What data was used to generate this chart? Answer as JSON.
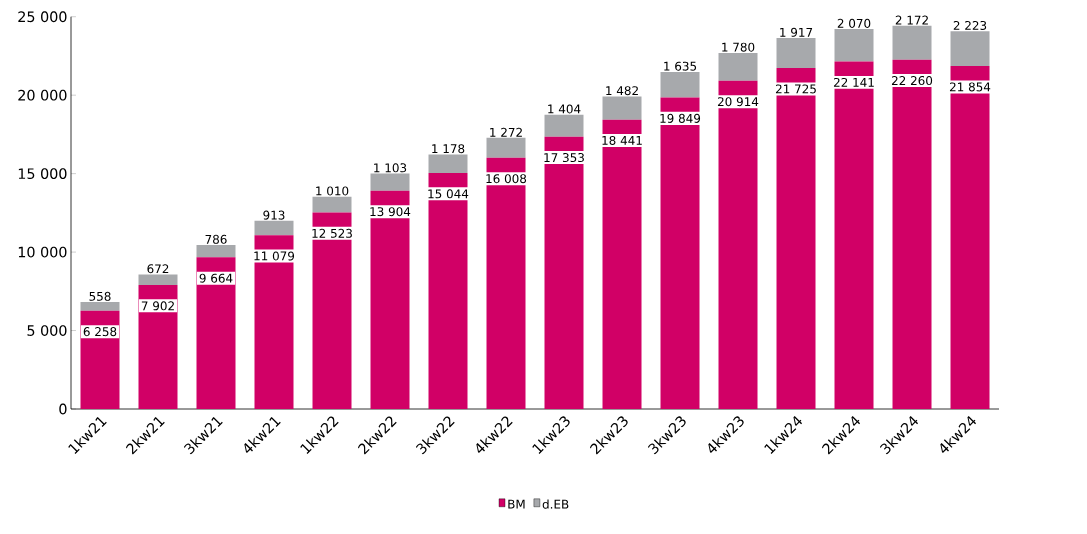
{
  "chart_data": {
    "type": "bar",
    "stacked": true,
    "categories": [
      "1kw21",
      "2kw21",
      "3kw21",
      "4kw21",
      "1kw22",
      "2kw22",
      "3kw22",
      "4kw22",
      "1kw23",
      "2kw23",
      "3kw23",
      "4kw23",
      "1kw24",
      "2kw24",
      "3kw24",
      "4kw24"
    ],
    "series": [
      {
        "name": "BM",
        "color": "#d10066",
        "values": [
          6258,
          7902,
          9664,
          11079,
          12523,
          13904,
          15044,
          16008,
          17353,
          18441,
          19849,
          20914,
          21725,
          22141,
          22260,
          21854
        ],
        "value_labels": [
          "6 258",
          "7 902",
          "9 664",
          "11 079",
          "12 523",
          "13 904",
          "15 044",
          "16 008",
          "17 353",
          "18 441",
          "19 849",
          "20 914",
          "21 725",
          "22 141",
          "22 260",
          "21 854"
        ]
      },
      {
        "name": "d.EB",
        "color": "#a7a9ac",
        "values": [
          558,
          672,
          786,
          913,
          1010,
          1103,
          1178,
          1272,
          1404,
          1482,
          1635,
          1780,
          1917,
          2070,
          2172,
          2223
        ],
        "value_labels": [
          "558",
          "672",
          "786",
          "913",
          "1 010",
          "1 103",
          "1 178",
          "1 272",
          "1 404",
          "1 482",
          "1 635",
          "1 780",
          "1 917",
          "2 070",
          "2 172",
          "2 223"
        ]
      }
    ],
    "ylim": [
      0,
      25000
    ],
    "yticks": [
      {
        "value": 0,
        "label": "0"
      },
      {
        "value": 5000,
        "label": "5 000"
      },
      {
        "value": 10000,
        "label": "10 000"
      },
      {
        "value": 15000,
        "label": "15 000"
      },
      {
        "value": 20000,
        "label": "20 000"
      },
      {
        "value": 25000,
        "label": "25 000"
      }
    ],
    "legend": "bottom",
    "grid": false
  }
}
